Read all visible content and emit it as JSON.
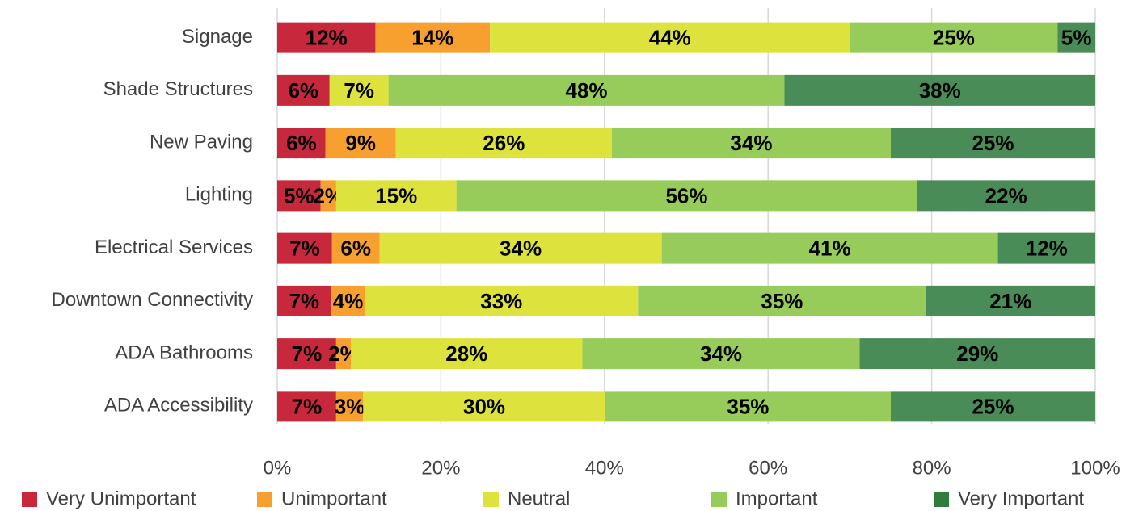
{
  "chart_data": {
    "type": "stacked_bar_horizontal",
    "categories": [
      "Signage",
      "Shade Structures",
      "New Paving",
      "Lighting",
      "Electrical Services",
      "Downtown Connectivity",
      "ADA Bathrooms",
      "ADA Accessibility"
    ],
    "series": [
      {
        "name": "Very Unimportant",
        "color": "#c8283c",
        "values": [
          12.0,
          6.4,
          5.9,
          5.3,
          6.7,
          6.6,
          7.2,
          7.2
        ],
        "value_labels": [
          "12%",
          "6%",
          "6%",
          "5%",
          "7%",
          "7%",
          "7%",
          "7%"
        ]
      },
      {
        "name": "Unimportant",
        "color": "#f7a030",
        "values": [
          14.0,
          0,
          8.6,
          1.9,
          5.8,
          4.1,
          1.8,
          3.3
        ],
        "value_labels": [
          "14%",
          null,
          "9%",
          "2%",
          "6%",
          "4%",
          "2%",
          "3%"
        ]
      },
      {
        "name": "Neutral",
        "color": "#dde33c",
        "values": [
          44.0,
          7.2,
          26.4,
          14.7,
          34.5,
          33.4,
          28.3,
          29.6
        ],
        "value_labels": [
          "44%",
          "7%",
          "26%",
          "15%",
          "34%",
          "33%",
          "28%",
          "30%"
        ]
      },
      {
        "name": "Important",
        "color": "#98cc5a",
        "values": [
          25.4,
          48.4,
          34.1,
          56.3,
          41.1,
          35.2,
          33.9,
          34.9
        ],
        "value_labels": [
          "25%",
          "48%",
          "34%",
          "56%",
          "41%",
          "35%",
          "34%",
          "35%"
        ]
      },
      {
        "name": "Very Important",
        "color": "#4a8c57",
        "values": [
          4.6,
          38.0,
          25.0,
          21.8,
          11.9,
          20.7,
          28.8,
          25.0
        ],
        "value_labels": [
          "5%",
          "38%",
          "25%",
          "22%",
          "12%",
          "21%",
          "29%",
          "25%"
        ]
      }
    ],
    "xlim": [
      0,
      100
    ],
    "xticks": [
      {
        "value": 0,
        "label": "0%"
      },
      {
        "value": 20,
        "label": "20%"
      },
      {
        "value": 40,
        "label": "40%"
      },
      {
        "value": 60,
        "label": "60%"
      },
      {
        "value": 80,
        "label": "80%"
      },
      {
        "value": 100,
        "label": "100%"
      }
    ],
    "grid": true,
    "legend": "bottom"
  }
}
